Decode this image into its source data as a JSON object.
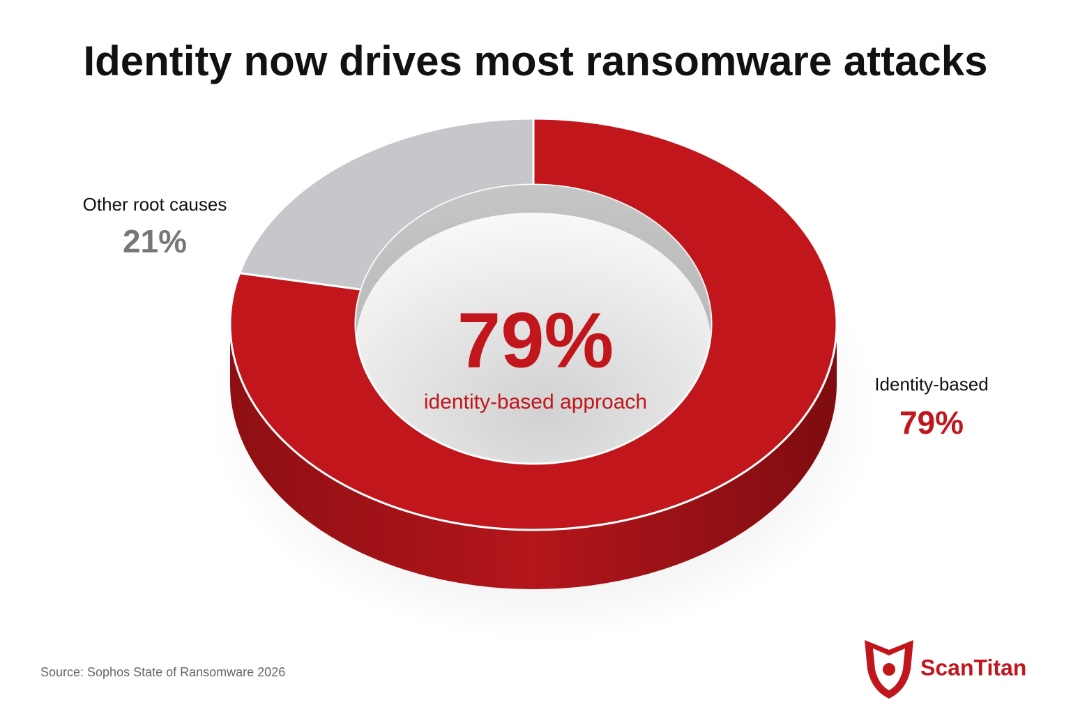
{
  "chart_data": {
    "type": "donut",
    "title": "Identity now drives most ransomware attacks",
    "categories": [
      "Identity-based",
      "Other root causes"
    ],
    "values": [
      79,
      21
    ],
    "value_labels": [
      "79%",
      "21%"
    ],
    "colors": [
      "#c0161c",
      "#c6c7ca"
    ],
    "center_label": "identity-based approach",
    "source": "Source: Sophos State of Ransomware 2026",
    "brand": "ScanTitan"
  }
}
